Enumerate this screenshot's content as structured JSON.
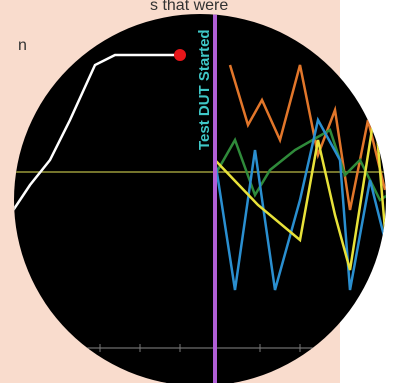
{
  "text_lines": [
    "s that were",
    "n"
  ],
  "annotation": "Test DUT Started"
}
